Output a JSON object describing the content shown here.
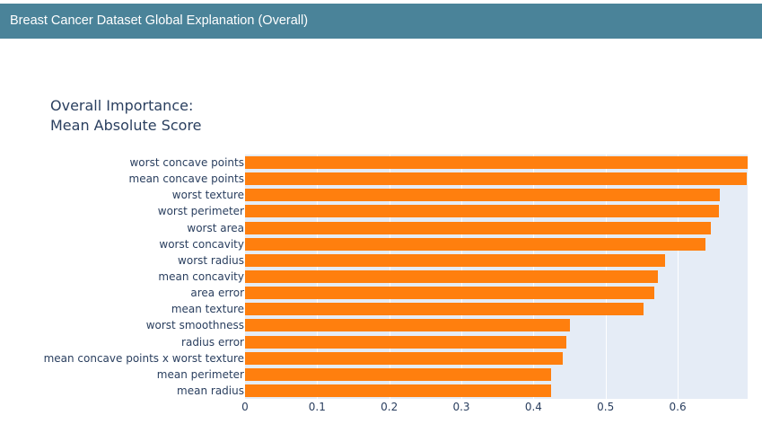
{
  "header": {
    "title": "Breast Cancer Dataset Global Explanation (Overall)"
  },
  "chart": {
    "title_line1": "Overall Importance:",
    "title_line2": "Mean Absolute Score",
    "bar_color": "#ff7f0e",
    "plot_bg_color": "#e5ecf6",
    "header_color": "#4a8399"
  },
  "chart_data": {
    "type": "bar",
    "orientation": "horizontal",
    "title": "Overall Importance: Mean Absolute Score",
    "xlabel": "",
    "ylabel": "",
    "xlim": [
      0,
      0.697
    ],
    "x_ticks": [
      "0",
      "0.1",
      "0.2",
      "0.3",
      "0.4",
      "0.5",
      "0.6"
    ],
    "grid": true,
    "legend": false,
    "categories": [
      "worst concave points",
      "mean concave points",
      "worst texture",
      "worst perimeter",
      "worst area",
      "worst concavity",
      "worst radius",
      "mean concavity",
      "area error",
      "mean texture",
      "worst smoothness",
      "radius error",
      "mean concave points x worst texture",
      "mean perimeter",
      "mean radius"
    ],
    "values": [
      0.697,
      0.696,
      0.658,
      0.657,
      0.646,
      0.639,
      0.583,
      0.573,
      0.567,
      0.552,
      0.45,
      0.446,
      0.44,
      0.424,
      0.424
    ]
  }
}
